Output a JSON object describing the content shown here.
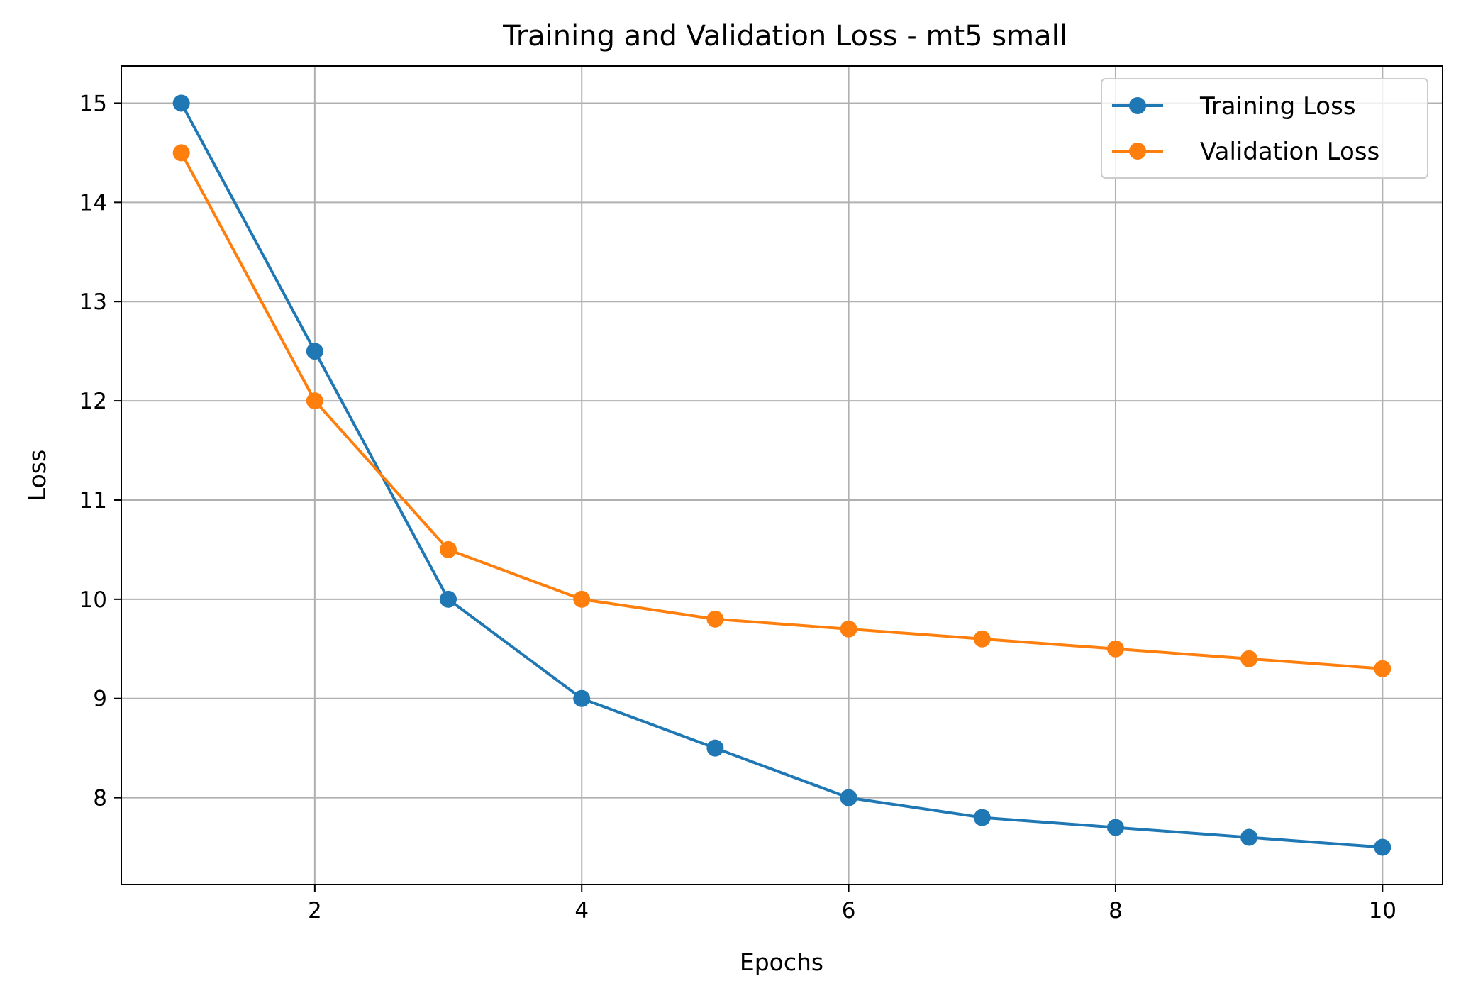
{
  "chart_data": {
    "type": "line",
    "title": "Training and Validation Loss - mt5 small",
    "xlabel": "Epochs",
    "ylabel": "Loss",
    "x": [
      1,
      2,
      3,
      4,
      5,
      6,
      7,
      8,
      9,
      10
    ],
    "xlim": [
      0.55,
      10.45
    ],
    "ylim": [
      7.125,
      15.375
    ],
    "xticks": [
      2,
      4,
      6,
      8,
      10
    ],
    "xtick_labels": [
      "2",
      "4",
      "6",
      "8",
      "10"
    ],
    "yticks": [
      8,
      9,
      10,
      11,
      12,
      13,
      14,
      15
    ],
    "ytick_labels": [
      "8",
      "9",
      "10",
      "11",
      "12",
      "13",
      "14",
      "15"
    ],
    "grid": true,
    "legend_position": "top-right",
    "series": [
      {
        "name": "Training Loss",
        "color": "#1f77b4",
        "marker": "circle",
        "values": [
          15.0,
          12.5,
          10.0,
          9.0,
          8.5,
          8.0,
          7.8,
          7.7,
          7.6,
          7.5
        ]
      },
      {
        "name": "Validation Loss",
        "color": "#ff7f0e",
        "marker": "circle",
        "values": [
          14.5,
          12.0,
          10.5,
          10.0,
          9.8,
          9.7,
          9.6,
          9.5,
          9.4,
          9.3
        ]
      }
    ]
  }
}
